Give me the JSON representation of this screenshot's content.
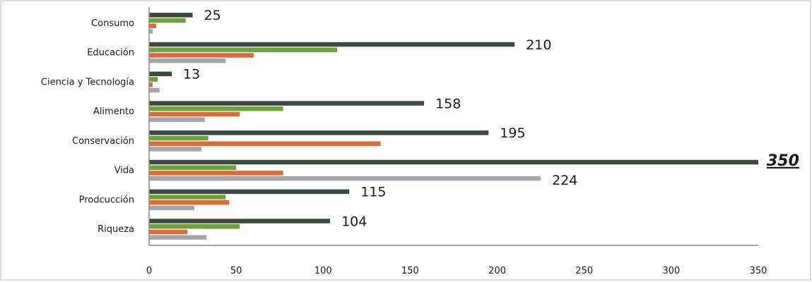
{
  "chart_data": {
    "type": "bar",
    "orientation": "horizontal",
    "categories": [
      "Consumo",
      "Educación",
      "Ciencia y Tecnología",
      "Alimento",
      "Conservación",
      "Vida",
      "Prodcucción",
      "Riqueza"
    ],
    "series": [
      {
        "color": "#3d4a3f",
        "values": [
          25,
          210,
          13,
          158,
          195,
          350,
          115,
          104
        ]
      },
      {
        "color": "#6da23a",
        "values": [
          21,
          108,
          5,
          77,
          34,
          50,
          44,
          52
        ]
      },
      {
        "color": "#e06b3a",
        "values": [
          4,
          60,
          2,
          52,
          133,
          77,
          46,
          22
        ]
      },
      {
        "color": "#a3a7ad",
        "values": [
          2,
          44,
          6,
          32,
          30,
          225,
          26,
          33
        ]
      }
    ],
    "data_labels": [
      "25",
      "210",
      "13",
      "158",
      "195",
      "350",
      "115",
      "104"
    ],
    "emphasized_label_index": 5,
    "xlim": [
      0,
      350
    ],
    "xticks": [
      "0",
      "50",
      "100",
      "150",
      "200",
      "250",
      "300",
      "350"
    ],
    "extra_labels": [
      "224"
    ],
    "grid": false,
    "legend": "none"
  }
}
